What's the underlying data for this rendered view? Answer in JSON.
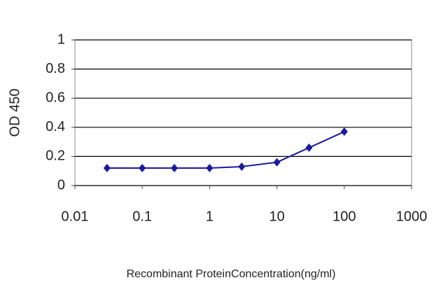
{
  "chart_data": {
    "type": "line",
    "x_label": "Recombinant ProteinConcentration(ng/ml)",
    "y_label": "OD 450",
    "x": [
      0.03,
      0.1,
      0.3,
      1,
      3,
      10,
      30,
      100
    ],
    "series": [
      {
        "name": "OD 450",
        "color": "#1a1a9c",
        "values": [
          0.12,
          0.12,
          0.12,
          0.12,
          0.13,
          0.16,
          0.26,
          0.37
        ]
      }
    ],
    "xscale": "log",
    "xlim": [
      0.01,
      1000
    ],
    "xticks": [
      0.01,
      0.1,
      1,
      10,
      100,
      1000
    ],
    "ylim": [
      0,
      1
    ],
    "yticks": [
      0,
      0.2,
      0.4,
      0.6,
      0.8,
      1
    ],
    "grid": true
  }
}
